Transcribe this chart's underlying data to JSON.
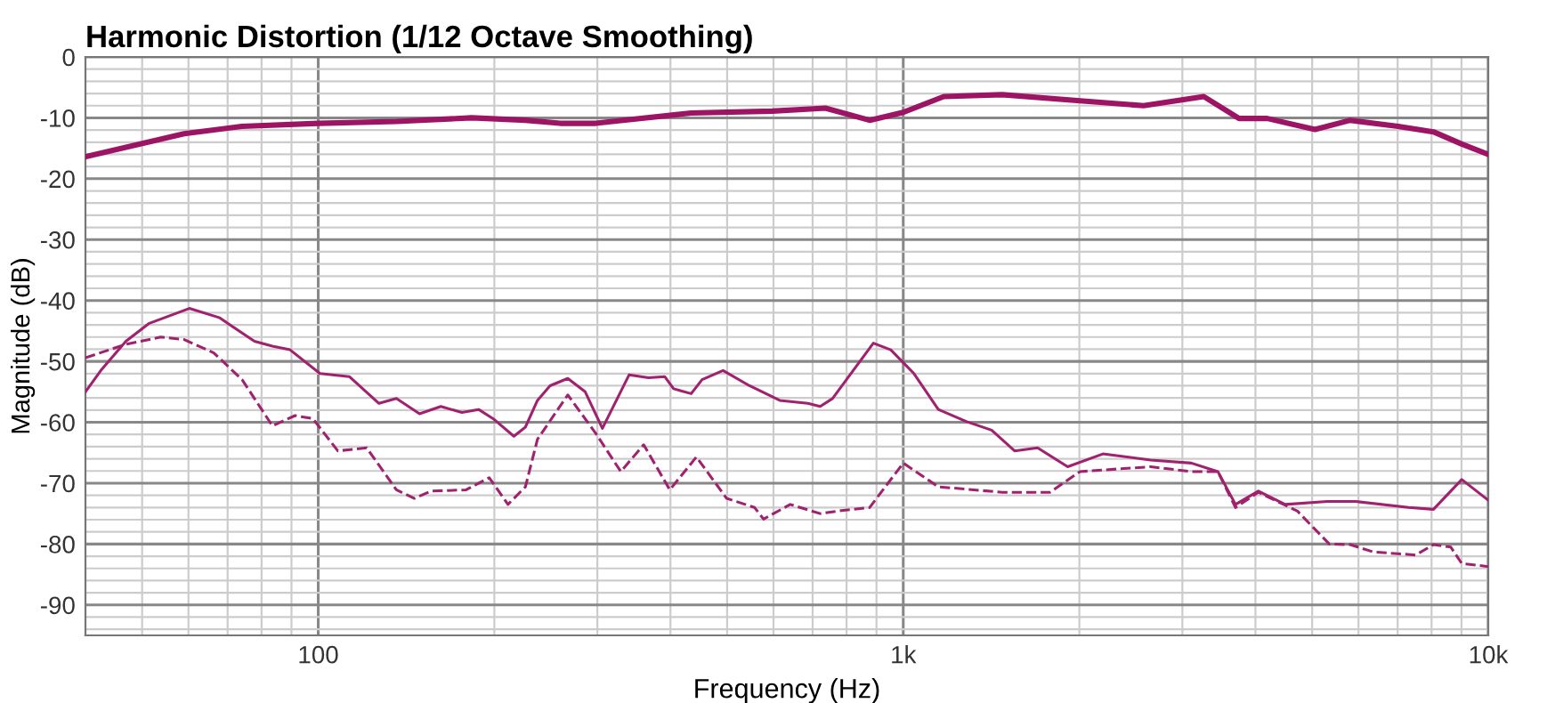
{
  "chart_data": {
    "type": "line",
    "title": "Harmonic Distortion (1/12 Octave Smoothing)",
    "xlabel": "Frequency (Hz)",
    "ylabel": "Magnitude (dB)",
    "log": "x",
    "xlim": [
      40,
      10000
    ],
    "ylim": [
      -95,
      0
    ],
    "xticks": [
      {
        "value": 50,
        "label": null
      },
      {
        "value": 60,
        "label": null
      },
      {
        "value": 70,
        "label": null
      },
      {
        "value": 80,
        "label": null
      },
      {
        "value": 90,
        "label": null
      },
      100,
      {
        "value": 200,
        "label": null
      },
      {
        "value": 300,
        "label": null
      },
      {
        "value": 400,
        "label": null
      },
      {
        "value": 500,
        "label": null
      },
      {
        "value": 600,
        "label": null
      },
      {
        "value": 700,
        "label": null
      },
      {
        "value": 800,
        "label": null
      },
      {
        "value": 900,
        "label": null
      },
      {
        "value": 1000,
        "label": "1k"
      },
      {
        "value": 2000,
        "label": null
      },
      {
        "value": 3000,
        "label": null
      },
      {
        "value": 4000,
        "label": null
      },
      {
        "value": 5000,
        "label": null
      },
      {
        "value": 6000,
        "label": null
      },
      {
        "value": 7000,
        "label": null
      },
      {
        "value": 8000,
        "label": null
      },
      {
        "value": 9000,
        "label": null
      },
      {
        "value": 10000,
        "label": "10k"
      }
    ],
    "yticks": [
      0,
      {
        "value": -2,
        "label": null
      },
      {
        "value": -4,
        "label": null
      },
      {
        "value": -6,
        "label": null
      },
      {
        "value": -8,
        "label": null
      },
      -10,
      {
        "value": -12,
        "label": null
      },
      {
        "value": -14,
        "label": null
      },
      {
        "value": -16,
        "label": null
      },
      {
        "value": -18,
        "label": null
      },
      -20,
      {
        "value": -22,
        "label": null
      },
      {
        "value": -24,
        "label": null
      },
      {
        "value": -26,
        "label": null
      },
      {
        "value": -28,
        "label": null
      },
      -30,
      {
        "value": -32,
        "label": null
      },
      {
        "value": -34,
        "label": null
      },
      {
        "value": -36,
        "label": null
      },
      {
        "value": -38,
        "label": null
      },
      -40,
      {
        "value": -42,
        "label": null
      },
      {
        "value": -44,
        "label": null
      },
      {
        "value": -46,
        "label": null
      },
      {
        "value": -48,
        "label": null
      },
      -50,
      {
        "value": -52,
        "label": null
      },
      {
        "value": -54,
        "label": null
      },
      {
        "value": -56,
        "label": null
      },
      {
        "value": -58,
        "label": null
      },
      -60,
      {
        "value": -62,
        "label": null
      },
      {
        "value": -64,
        "label": null
      },
      {
        "value": -66,
        "label": null
      },
      {
        "value": -68,
        "label": null
      },
      -70,
      {
        "value": -72,
        "label": null
      },
      {
        "value": -74,
        "label": null
      },
      {
        "value": -76,
        "label": null
      },
      {
        "value": -78,
        "label": null
      },
      -80,
      {
        "value": -82,
        "label": null
      },
      {
        "value": -84,
        "label": null
      },
      {
        "value": -86,
        "label": null
      },
      {
        "value": -88,
        "label": null
      },
      -90,
      {
        "value": -92,
        "label": null
      },
      {
        "value": -94,
        "label": null
      }
    ],
    "grid": true,
    "legend": false,
    "marker": "none",
    "series": [
      {
        "color": "#9c1463",
        "line_style": "solid",
        "x": [
          40,
          59,
          74,
          100,
          136,
          183,
          226,
          259,
          298,
          434,
          597,
          736,
          876,
          1000,
          1173,
          1476,
          2005,
          2576,
          3264,
          3750,
          4190,
          5056,
          5808,
          7015,
          8060,
          9010,
          10000
        ],
        "values": [
          -16.4,
          -12.6,
          -11.4,
          -10.9,
          -10.6,
          -10,
          -10.4,
          -10.9,
          -10.9,
          -9.2,
          -8.9,
          -8.4,
          -10.4,
          -9.1,
          -6.5,
          -6.2,
          -7.2,
          -8.0,
          -6.5,
          -10.1,
          -10.1,
          -11.9,
          -10.4,
          -11.4,
          -12.3,
          -14.3,
          -16
        ]
      },
      {
        "color": "#a0226e",
        "line_style": "solid",
        "x": [
          40,
          42.5,
          46.9,
          51.3,
          60.2,
          67.7,
          77.8,
          83.5,
          89.5,
          100.7,
          113,
          127,
          136,
          149,
          162,
          176,
          188,
          199,
          216,
          226,
          237,
          249,
          267,
          286,
          306,
          340,
          367,
          391,
          405,
          434,
          453,
          492,
          546,
          615,
          687,
          721,
          757,
          889,
          952,
          1043,
          1148,
          1284,
          1416,
          1550,
          1697,
          1910,
          2194,
          2648,
          3108,
          3450,
          3698,
          4046,
          4496,
          5310,
          5930,
          7310,
          8060,
          9010,
          10000
        ],
        "values": [
          -55.0,
          -51.5,
          -46.7,
          -43.8,
          -41.3,
          -42.8,
          -46.7,
          -47.5,
          -48.1,
          -52.0,
          -52.5,
          -56.9,
          -56.1,
          -58.6,
          -57.4,
          -58.4,
          -57.9,
          -59.4,
          -62.3,
          -60.8,
          -56.4,
          -54.0,
          -52.8,
          -55.0,
          -61.0,
          -52.2,
          -52.7,
          -52.5,
          -54.5,
          -55.3,
          -53.0,
          -51.5,
          -54.0,
          -56.4,
          -56.9,
          -57.4,
          -56.1,
          -47.0,
          -48.1,
          -52.0,
          -57.9,
          -59.9,
          -61.3,
          -64.7,
          -64.2,
          -67.3,
          -65.2,
          -66.2,
          -66.7,
          -68.1,
          -73.5,
          -71.3,
          -73.5,
          -73.0,
          -73.0,
          -74.0,
          -74.3,
          -69.4,
          -72.8
        ]
      },
      {
        "color": "#a0226e",
        "line_style": "dashed",
        "x": [
          40,
          46.9,
          53.8,
          58.9,
          66.3,
          74.1,
          83.5,
          91.3,
          97.9,
          108,
          121,
          136,
          146,
          156,
          179,
          196,
          211,
          226,
          237,
          267,
          298,
          329,
          360,
          399,
          443,
          499,
          557,
          577,
          641,
          721,
          784,
          876,
          1000,
          1148,
          1476,
          1781,
          2005,
          2648,
          3108,
          3450,
          3698,
          4046,
          4720,
          5350,
          5808,
          6360,
          7516,
          8060,
          8630,
          9010,
          10000
        ],
        "values": [
          -49.4,
          -47.2,
          -46.0,
          -46.4,
          -48.6,
          -53.0,
          -60.6,
          -58.9,
          -59.4,
          -64.7,
          -64.2,
          -71.1,
          -72.5,
          -71.3,
          -71.1,
          -69.1,
          -73.5,
          -70.6,
          -62.8,
          -55.5,
          -61.8,
          -68.1,
          -63.7,
          -71.1,
          -65.7,
          -72.5,
          -74.0,
          -75.9,
          -73.5,
          -75.0,
          -74.5,
          -74.0,
          -66.7,
          -70.6,
          -71.5,
          -71.5,
          -68.1,
          -67.3,
          -68.1,
          -68.1,
          -74.0,
          -71.5,
          -74.6,
          -80.0,
          -80.1,
          -81.3,
          -81.8,
          -80.1,
          -80.5,
          -83.2,
          -83.7
        ]
      }
    ]
  }
}
